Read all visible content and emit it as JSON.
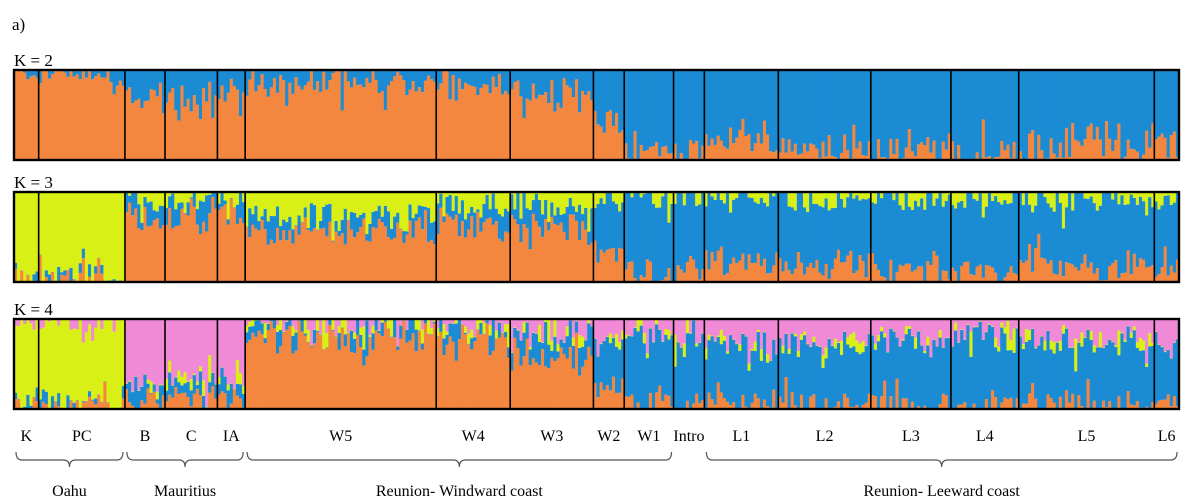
{
  "figure": {
    "panel_label": "a)"
  },
  "colors": {
    "orange": "#f4873f",
    "blue": "#1b8bd4",
    "yellow": "#d9f016",
    "pink": "#f08ad6",
    "border": "#000000"
  },
  "chart_data": {
    "type": "stacked-bar",
    "panels": [
      {
        "label": "K = 2",
        "k": 2
      },
      {
        "label": "K = 3",
        "k": 3
      },
      {
        "label": "K = 4",
        "k": 4
      }
    ],
    "populations": [
      {
        "name": "K",
        "group": "Oahu",
        "n": 8,
        "q2": [
          0.96,
          0.04
        ],
        "q3": [
          0.01,
          0.02,
          0.97
        ],
        "q4": [
          0.01,
          0.02,
          0.96,
          0.01
        ]
      },
      {
        "name": "PC",
        "group": "Oahu",
        "n": 28,
        "q2": [
          0.96,
          0.04
        ],
        "q3": [
          0.01,
          0.02,
          0.97
        ],
        "q4": [
          0.01,
          0.02,
          0.96,
          0.01
        ]
      },
      {
        "name": "B",
        "group": "Mauritius",
        "n": 13,
        "q2": [
          0.7,
          0.3
        ],
        "q3": [
          0.78,
          0.16,
          0.06
        ],
        "q4": [
          0.12,
          0.18,
          0.02,
          0.68
        ]
      },
      {
        "name": "C",
        "group": "Mauritius",
        "n": 17,
        "q2": [
          0.66,
          0.34
        ],
        "q3": [
          0.8,
          0.15,
          0.05
        ],
        "q4": [
          0.14,
          0.17,
          0.02,
          0.67
        ]
      },
      {
        "name": "IA",
        "group": "Mauritius",
        "n": 9,
        "q2": [
          0.72,
          0.28
        ],
        "q3": [
          0.82,
          0.14,
          0.04
        ],
        "q4": [
          0.12,
          0.15,
          0.02,
          0.71
        ]
      },
      {
        "name": "W5",
        "group": "Reunion- Windward coast",
        "n": 62,
        "q2": [
          0.86,
          0.14
        ],
        "q3": [
          0.58,
          0.14,
          0.28
        ],
        "q4": [
          0.84,
          0.1,
          0.02,
          0.04
        ]
      },
      {
        "name": "W4",
        "group": "Reunion- Windward coast",
        "n": 24,
        "q2": [
          0.84,
          0.16
        ],
        "q3": [
          0.62,
          0.2,
          0.18
        ],
        "q4": [
          0.82,
          0.12,
          0.02,
          0.04
        ]
      },
      {
        "name": "W3",
        "group": "Reunion- Windward coast",
        "n": 27,
        "q2": [
          0.74,
          0.26
        ],
        "q3": [
          0.6,
          0.24,
          0.16
        ],
        "q4": [
          0.6,
          0.22,
          0.02,
          0.16
        ]
      },
      {
        "name": "W2",
        "group": "Reunion- Windward coast",
        "n": 10,
        "q2": [
          0.4,
          0.6
        ],
        "q3": [
          0.34,
          0.58,
          0.08
        ],
        "q4": [
          0.24,
          0.52,
          0.02,
          0.22
        ]
      },
      {
        "name": "W1",
        "group": "Reunion- Windward coast",
        "n": 16,
        "q2": [
          0.1,
          0.9
        ],
        "q3": [
          0.1,
          0.86,
          0.04
        ],
        "q4": [
          0.04,
          0.8,
          0.02,
          0.14
        ]
      },
      {
        "name": "Intro",
        "group": "",
        "n": 10,
        "q2": [
          0.12,
          0.88
        ],
        "q3": [
          0.14,
          0.82,
          0.04
        ],
        "q4": [
          0.04,
          0.76,
          0.02,
          0.18
        ]
      },
      {
        "name": "L1",
        "group": "Reunion- Leeward coast",
        "n": 24,
        "q2": [
          0.22,
          0.78
        ],
        "q3": [
          0.24,
          0.7,
          0.06
        ],
        "q4": [
          0.04,
          0.64,
          0.02,
          0.3
        ]
      },
      {
        "name": "L2",
        "group": "Reunion- Leeward coast",
        "n": 30,
        "q2": [
          0.18,
          0.82
        ],
        "q3": [
          0.2,
          0.74,
          0.06
        ],
        "q4": [
          0.04,
          0.66,
          0.02,
          0.28
        ]
      },
      {
        "name": "L3",
        "group": "Reunion- Leeward coast",
        "n": 26,
        "q2": [
          0.12,
          0.88
        ],
        "q3": [
          0.14,
          0.8,
          0.06
        ],
        "q4": [
          0.04,
          0.72,
          0.02,
          0.22
        ]
      },
      {
        "name": "L4",
        "group": "Reunion- Leeward coast",
        "n": 22,
        "q2": [
          0.1,
          0.9
        ],
        "q3": [
          0.12,
          0.82,
          0.06
        ],
        "q4": [
          0.03,
          0.76,
          0.02,
          0.19
        ]
      },
      {
        "name": "L5",
        "group": "Reunion- Leeward coast",
        "n": 44,
        "q2": [
          0.15,
          0.85
        ],
        "q3": [
          0.18,
          0.76,
          0.06
        ],
        "q4": [
          0.04,
          0.7,
          0.02,
          0.24
        ]
      },
      {
        "name": "L6",
        "group": "Reunion- Leeward coast",
        "n": 8,
        "q2": [
          0.18,
          0.82
        ],
        "q3": [
          0.2,
          0.74,
          0.06
        ],
        "q4": [
          0.04,
          0.68,
          0.02,
          0.26
        ]
      }
    ],
    "cluster_colors": {
      "q2": [
        "orange",
        "blue"
      ],
      "q3": [
        "orange",
        "blue",
        "yellow"
      ],
      "q4": [
        "orange",
        "blue",
        "yellow",
        "pink"
      ]
    },
    "groups": [
      {
        "label": "Oahu",
        "from": "K",
        "to": "PC"
      },
      {
        "label": "Mauritius",
        "from": "B",
        "to": "IA"
      },
      {
        "label": "Reunion- Windward coast",
        "from": "W5",
        "to": "W1"
      },
      {
        "label": "Reunion- Leeward coast",
        "from": "L1",
        "to": "L6"
      }
    ]
  }
}
